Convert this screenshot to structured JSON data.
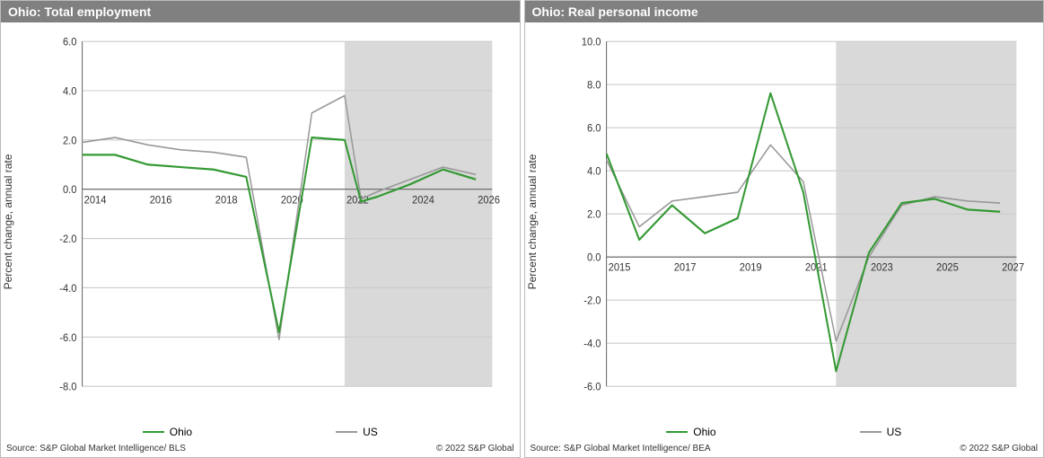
{
  "panels": [
    {
      "title": "Ohio: Total employment",
      "ylabel": "Percent change, annual rate",
      "source": "Source: S&P Global Market Intelligence/ BLS",
      "copyright": "© 2022 S&P Global",
      "chart": {
        "type": "line",
        "x_start": 2014,
        "x_end": 2026.5,
        "x_ticks": [
          2014,
          2016,
          2018,
          2020,
          2022,
          2024,
          2026
        ],
        "y_min": -8.0,
        "y_max": 6.0,
        "y_ticks": [
          -8.0,
          -6.0,
          -4.0,
          -2.0,
          0.0,
          2.0,
          4.0,
          6.0
        ],
        "shade_start": 2022,
        "shade_end": 2026.5,
        "shade_color": "#d9d9d9",
        "grid_color": "#cccccc",
        "axis_color": "#666666",
        "tick_fontsize": 11,
        "series": [
          {
            "name": "Ohio",
            "color": "#339933",
            "width": 2.0,
            "x": [
              2014,
              2015,
              2016,
              2017,
              2018,
              2019,
              2020,
              2021,
              2022,
              2022.5,
              2023,
              2024,
              2025,
              2026
            ],
            "y": [
              1.4,
              1.4,
              1.0,
              0.9,
              0.8,
              0.5,
              -5.8,
              2.1,
              2.0,
              -0.5,
              -0.3,
              0.2,
              0.8,
              0.4
            ]
          },
          {
            "name": "US",
            "color": "#999999",
            "width": 1.5,
            "x": [
              2014,
              2015,
              2016,
              2017,
              2018,
              2019,
              2020,
              2021,
              2022,
              2022.5,
              2023,
              2024,
              2025,
              2026
            ],
            "y": [
              1.9,
              2.1,
              1.8,
              1.6,
              1.5,
              1.3,
              -6.1,
              3.1,
              3.8,
              -0.4,
              -0.1,
              0.4,
              0.9,
              0.6
            ]
          }
        ]
      }
    },
    {
      "title": "Ohio: Real personal income",
      "ylabel": "Percent change, annual rate",
      "source": "Source: S&P Global Market Intelligence/ BEA",
      "copyright": "© 2022 S&P Global",
      "chart": {
        "type": "line",
        "x_start": 2015,
        "x_end": 2027.5,
        "x_ticks": [
          2015,
          2017,
          2019,
          2021,
          2023,
          2025,
          2027
        ],
        "y_min": -6.0,
        "y_max": 10.0,
        "y_ticks": [
          -6.0,
          -4.0,
          -2.0,
          0.0,
          2.0,
          4.0,
          6.0,
          8.0,
          10.0
        ],
        "shade_start": 2022,
        "shade_end": 2027.5,
        "shade_color": "#d9d9d9",
        "grid_color": "#cccccc",
        "axis_color": "#666666",
        "tick_fontsize": 11,
        "series": [
          {
            "name": "Ohio",
            "color": "#339933",
            "width": 2.0,
            "x": [
              2015,
              2016,
              2017,
              2018,
              2019,
              2020,
              2021,
              2022,
              2023,
              2024,
              2025,
              2026,
              2027
            ],
            "y": [
              4.8,
              0.8,
              2.4,
              1.1,
              1.8,
              7.6,
              3.0,
              -5.3,
              0.2,
              2.5,
              2.7,
              2.2,
              2.1
            ]
          },
          {
            "name": "US",
            "color": "#999999",
            "width": 1.5,
            "x": [
              2015,
              2016,
              2017,
              2018,
              2019,
              2020,
              2021,
              2022,
              2023,
              2024,
              2025,
              2026,
              2027
            ],
            "y": [
              4.5,
              1.4,
              2.6,
              2.8,
              3.0,
              5.2,
              3.5,
              -3.9,
              0.0,
              2.4,
              2.8,
              2.6,
              2.5
            ]
          }
        ]
      }
    }
  ],
  "legend_labels": {
    "ohio": "Ohio",
    "us": "US"
  }
}
